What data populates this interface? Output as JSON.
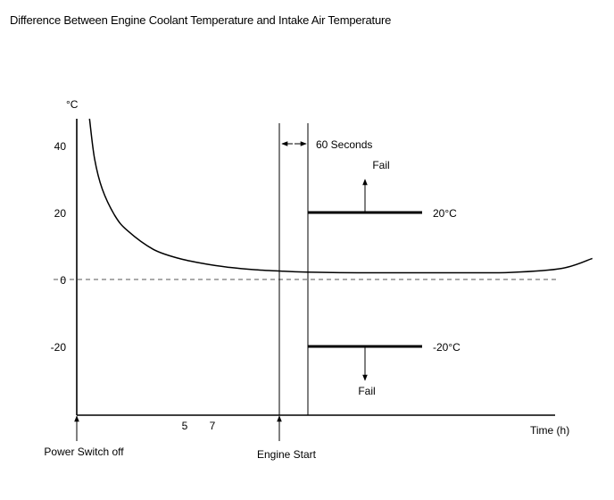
{
  "title": "Difference Between Engine Coolant Temperature and Intake Air Temperature",
  "chart_data": {
    "type": "line",
    "title": "Difference Between Engine Coolant Temperature and Intake Air Temperature",
    "ylabel": "°C",
    "xlabel": "Time (h)",
    "y_ticks": [
      40,
      20,
      0,
      -20
    ],
    "x_ticks": [
      5,
      7
    ],
    "ylim": [
      -42,
      48
    ],
    "grid": false,
    "series": [
      {
        "x": [
          0.5,
          0.7,
          1,
          1.5,
          2,
          3,
          4,
          5,
          6,
          7,
          8,
          9,
          11,
          13,
          15,
          17,
          19,
          20.2
        ],
        "values": [
          48,
          36,
          27,
          19,
          14.5,
          9,
          6.3,
          4.7,
          3.6,
          2.9,
          2.5,
          2.2,
          2,
          2,
          2,
          2.1,
          3.3,
          6.3
        ]
      }
    ],
    "events": [
      {
        "label": "Power Switch off",
        "x": 0
      },
      {
        "label": "Engine Start",
        "x": 8
      }
    ],
    "reference_line": {
      "y": 0,
      "style": "dashed"
    },
    "interval": {
      "label": "60 Seconds"
    },
    "thresholds": [
      {
        "y": 20,
        "label": "20°C",
        "fail_label": "Fail",
        "fail_direction": "up"
      },
      {
        "y": -20,
        "label": "-20°C",
        "fail_label": "Fail",
        "fail_direction": "down"
      }
    ]
  }
}
